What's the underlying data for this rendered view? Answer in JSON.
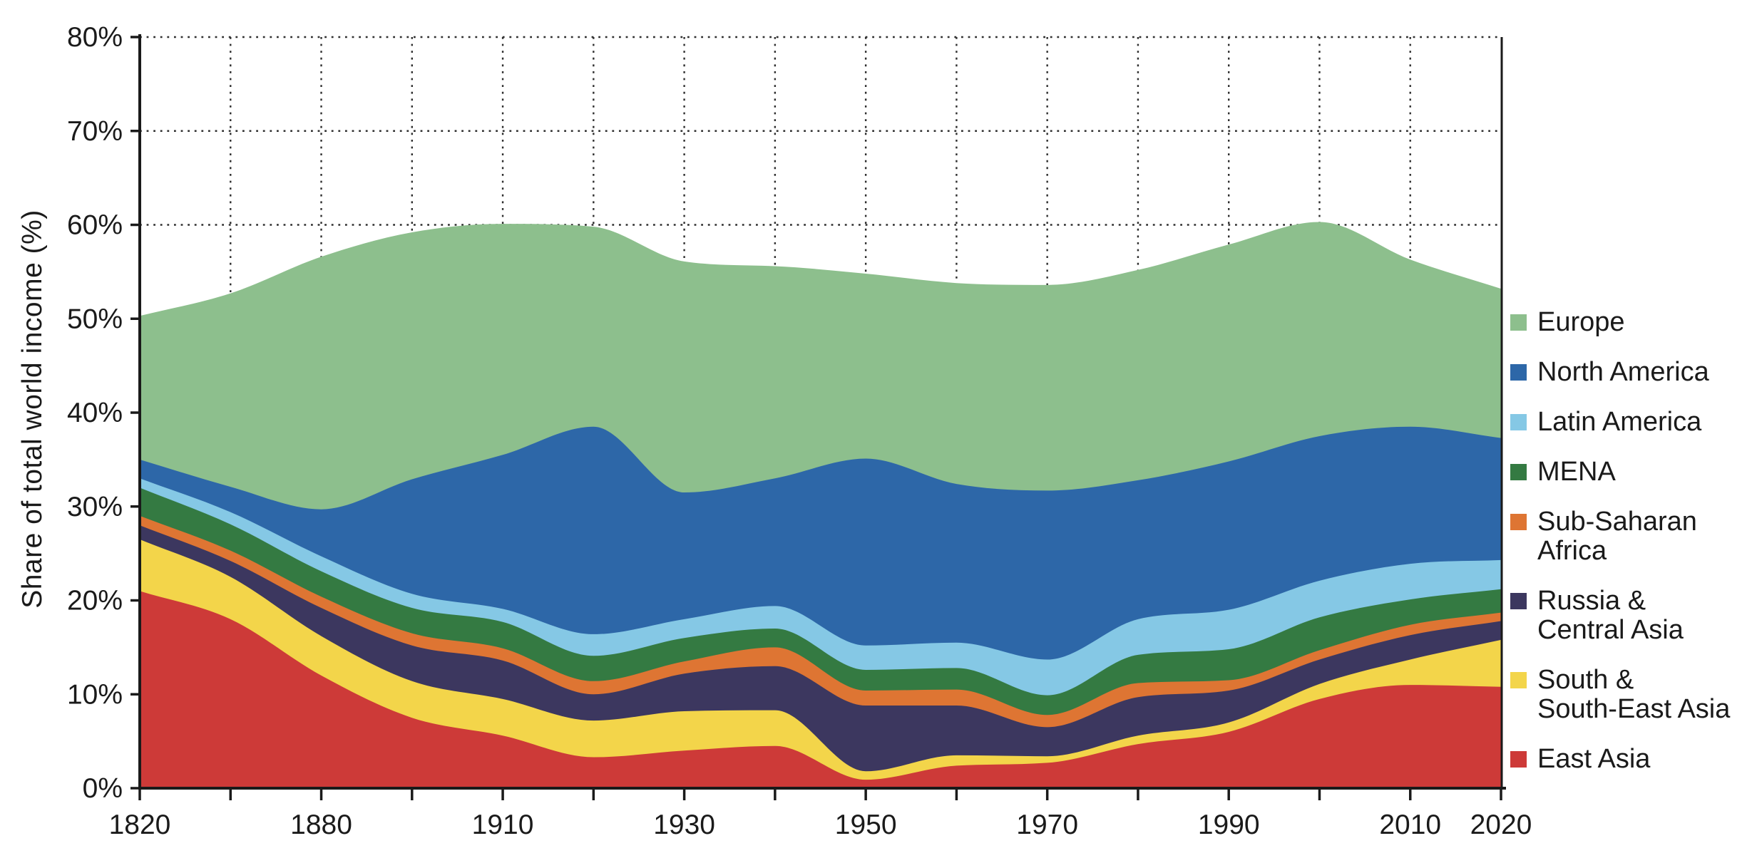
{
  "figure": {
    "background_color": "#ffffff",
    "axis_color": "#1a1a1a",
    "grid_color": "#2e2e2e",
    "text_color": "#1a1a1a"
  },
  "chart_data": {
    "type": "area",
    "stacked": true,
    "ylabel": "Share of total world income (%)",
    "xlabel": "",
    "ylim": [
      0,
      80
    ],
    "grid": "dotted horizontal and vertical",
    "legend_position": "right",
    "x": [
      1820,
      1850,
      1880,
      1900,
      1910,
      1920,
      1930,
      1940,
      1950,
      1960,
      1970,
      1980,
      1990,
      2000,
      2010,
      2020
    ],
    "x_tick_labels": [
      1820,
      1880,
      1910,
      1930,
      1950,
      1970,
      1990,
      2010,
      2020
    ],
    "y_ticks": [
      {
        "value": 0,
        "label": "0%"
      },
      {
        "value": 10,
        "label": "10%"
      },
      {
        "value": 20,
        "label": "20%"
      },
      {
        "value": 30,
        "label": "30%"
      },
      {
        "value": 40,
        "label": "40%"
      },
      {
        "value": 50,
        "label": "50%"
      },
      {
        "value": 60,
        "label": "60%"
      },
      {
        "value": 70,
        "label": "70%"
      },
      {
        "value": 80,
        "label": "80%"
      }
    ],
    "series_bottom_to_top": [
      {
        "key": "east-asia",
        "name": "East Asia",
        "color": "#cd3a38",
        "values": [
          21.0,
          18.0,
          12.0,
          7.5,
          5.6,
          3.3,
          4.0,
          4.5,
          0.9,
          2.4,
          2.7,
          4.7,
          6.0,
          9.5,
          11.0,
          10.8
        ]
      },
      {
        "key": "south-se-asia",
        "name": "South &\nSouth-East Asia",
        "color": "#f3d54a",
        "values": [
          5.5,
          4.5,
          4.2,
          3.9,
          3.9,
          3.9,
          4.2,
          3.8,
          0.9,
          1.1,
          0.7,
          0.9,
          1.0,
          1.6,
          2.7,
          5.0
        ]
      },
      {
        "key": "russia-central-asia",
        "name": "Russia &\nCentral Asia",
        "color": "#3c375f",
        "values": [
          1.5,
          1.7,
          3.0,
          3.8,
          4.1,
          2.8,
          4.0,
          4.7,
          7.0,
          5.3,
          3.1,
          4.1,
          3.4,
          2.6,
          2.6,
          2.0
        ]
      },
      {
        "key": "sub-saharan-africa",
        "name": "Sub-Saharan\nAfrica",
        "color": "#de7533",
        "values": [
          1.0,
          1.1,
          1.2,
          1.3,
          1.3,
          1.4,
          1.3,
          2.0,
          1.6,
          1.7,
          1.3,
          1.5,
          1.1,
          1.0,
          1.1,
          0.9
        ]
      },
      {
        "key": "mena",
        "name": "MENA",
        "color": "#347a42",
        "values": [
          3.0,
          2.8,
          2.7,
          2.7,
          2.8,
          2.7,
          2.5,
          2.0,
          2.2,
          2.3,
          2.1,
          3.0,
          3.3,
          3.5,
          2.7,
          2.5
        ]
      },
      {
        "key": "latin-america",
        "name": "Latin America",
        "color": "#85c8e5",
        "values": [
          1.0,
          1.3,
          1.6,
          1.5,
          1.4,
          2.3,
          2.0,
          2.4,
          2.6,
          2.7,
          3.8,
          3.8,
          4.2,
          3.9,
          3.8,
          3.1
        ]
      },
      {
        "key": "north-america",
        "name": "North America",
        "color": "#2d67a8",
        "values": [
          2.0,
          2.7,
          5.0,
          12.2,
          16.4,
          22.1,
          13.5,
          13.6,
          19.9,
          16.9,
          18.0,
          14.8,
          15.8,
          15.4,
          14.6,
          13.0
        ]
      },
      {
        "key": "europe",
        "name": "Europe",
        "color": "#8dbf8d",
        "values": [
          15.3,
          20.6,
          26.9,
          26.3,
          24.6,
          21.3,
          24.6,
          22.6,
          19.7,
          21.4,
          21.9,
          22.4,
          23.1,
          22.8,
          17.8,
          15.9
        ]
      }
    ]
  }
}
